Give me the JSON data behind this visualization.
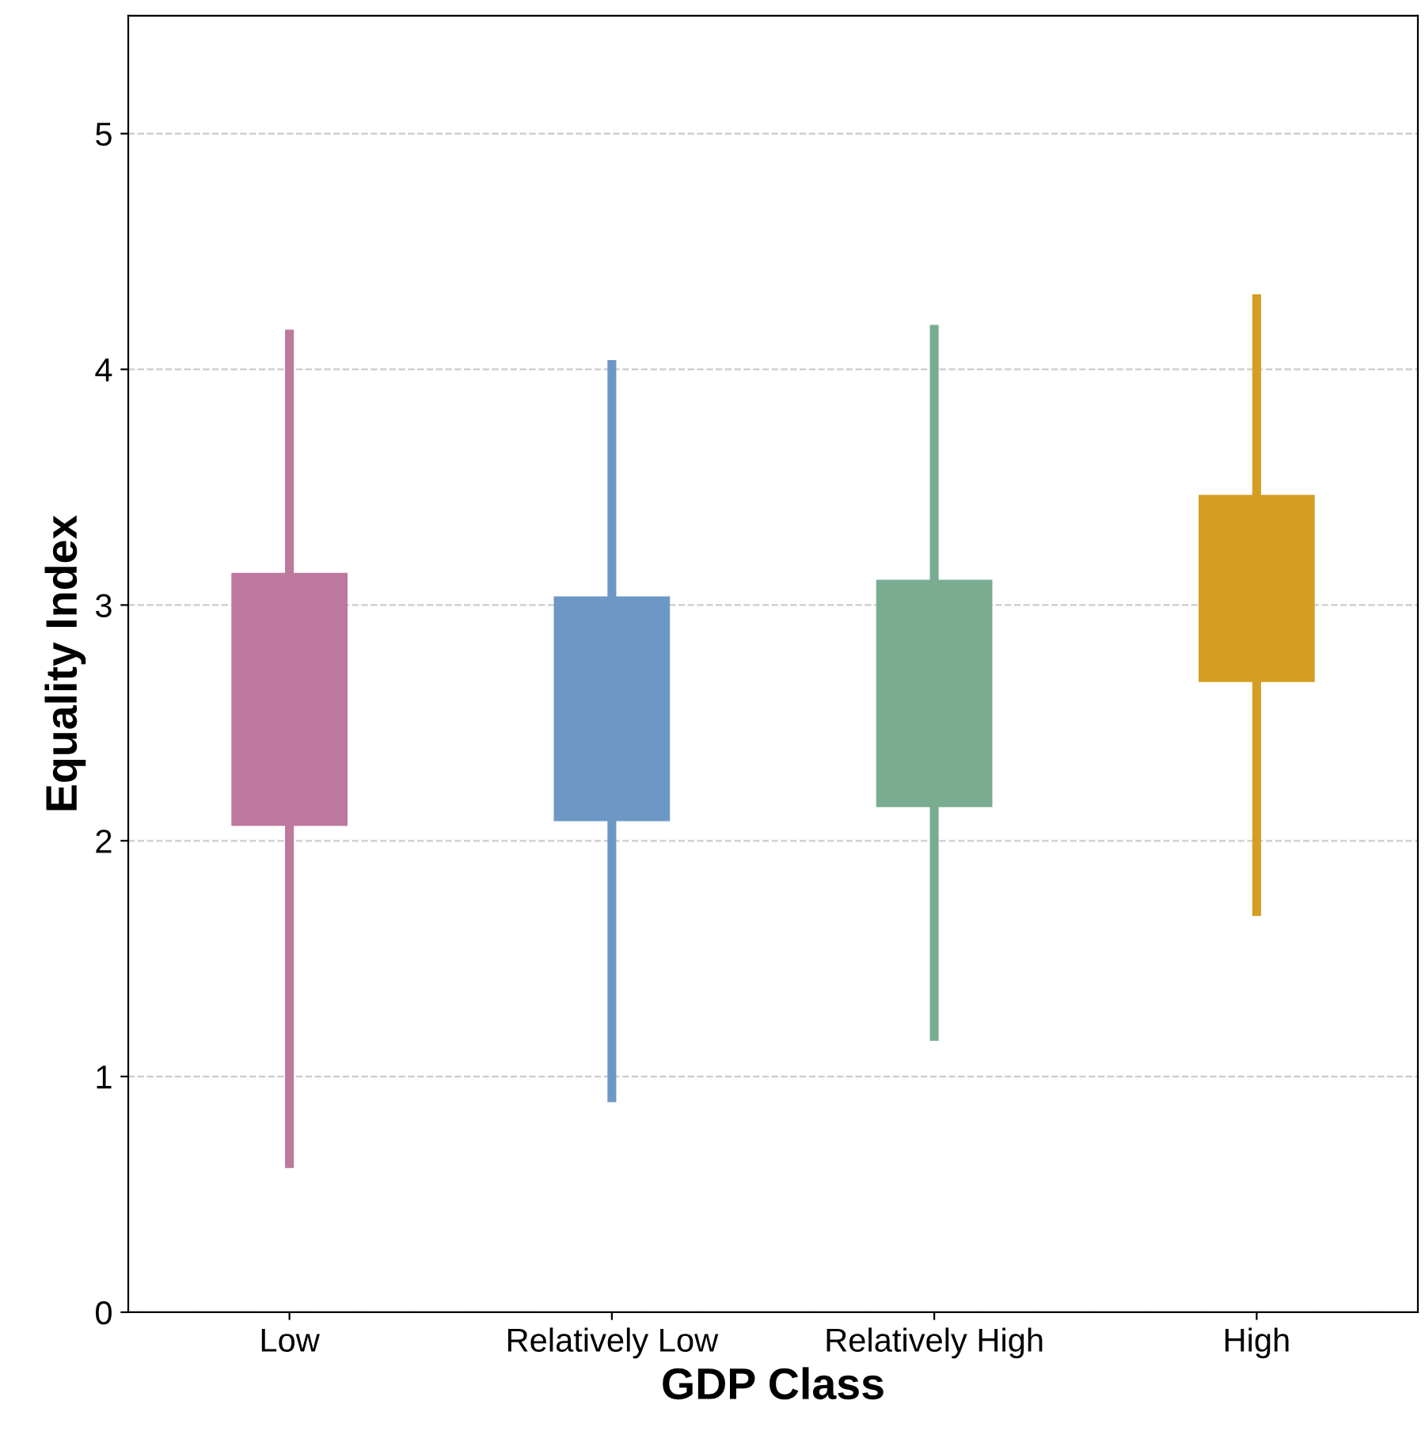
{
  "chart_data": {
    "type": "box",
    "xlabel": "GDP Class",
    "ylabel": "Equality Index",
    "categories": [
      "Low",
      "Relatively Low",
      "Relatively High",
      "High"
    ],
    "colors": [
      "#bd789e",
      "#6d98c6",
      "#79ac91",
      "#d49e22"
    ],
    "boxes": [
      {
        "low": 0.63,
        "q1": 2.07,
        "q3": 3.13,
        "high": 4.15
      },
      {
        "low": 0.91,
        "q1": 2.09,
        "q3": 3.03,
        "high": 4.02
      },
      {
        "low": 1.17,
        "q1": 2.15,
        "q3": 3.1,
        "high": 4.17
      },
      {
        "low": 1.7,
        "q1": 2.68,
        "q3": 3.46,
        "high": 4.3
      }
    ],
    "ylim": [
      0,
      5.5
    ],
    "yticks": [
      0,
      1,
      2,
      3,
      4,
      5
    ],
    "grid": "y"
  }
}
